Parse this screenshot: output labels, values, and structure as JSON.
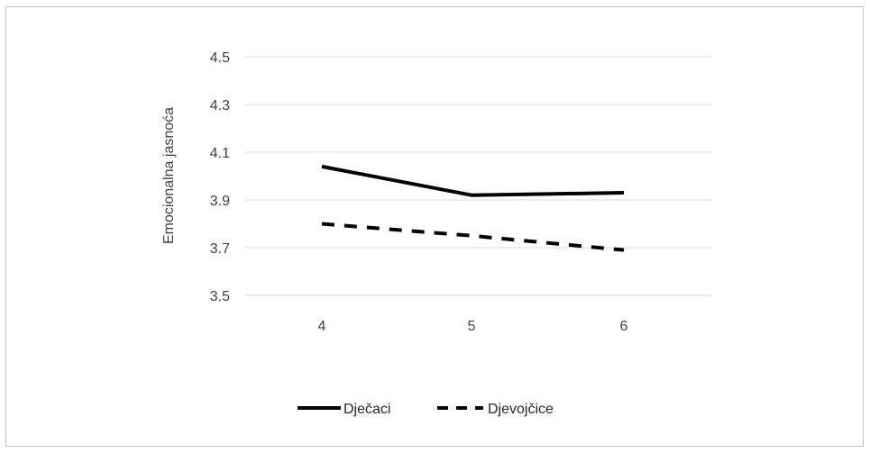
{
  "chart_data": {
    "type": "line",
    "title": "",
    "xlabel": "",
    "ylabel": "Emocionalna jasnoća",
    "categories": [
      "4",
      "5",
      "6"
    ],
    "ylim": [
      3.5,
      4.5
    ],
    "yticks": [
      "3.5",
      "3.7",
      "3.9",
      "4.1",
      "4.3",
      "4.5"
    ],
    "grid": true,
    "legend_position": "bottom",
    "series": [
      {
        "name": "Dječaci",
        "values": [
          4.04,
          3.92,
          3.93
        ],
        "style": "solid",
        "color": "#000000"
      },
      {
        "name": "Djevojčice",
        "values": [
          3.8,
          3.75,
          3.69
        ],
        "style": "dashed",
        "color": "#000000"
      }
    ]
  }
}
